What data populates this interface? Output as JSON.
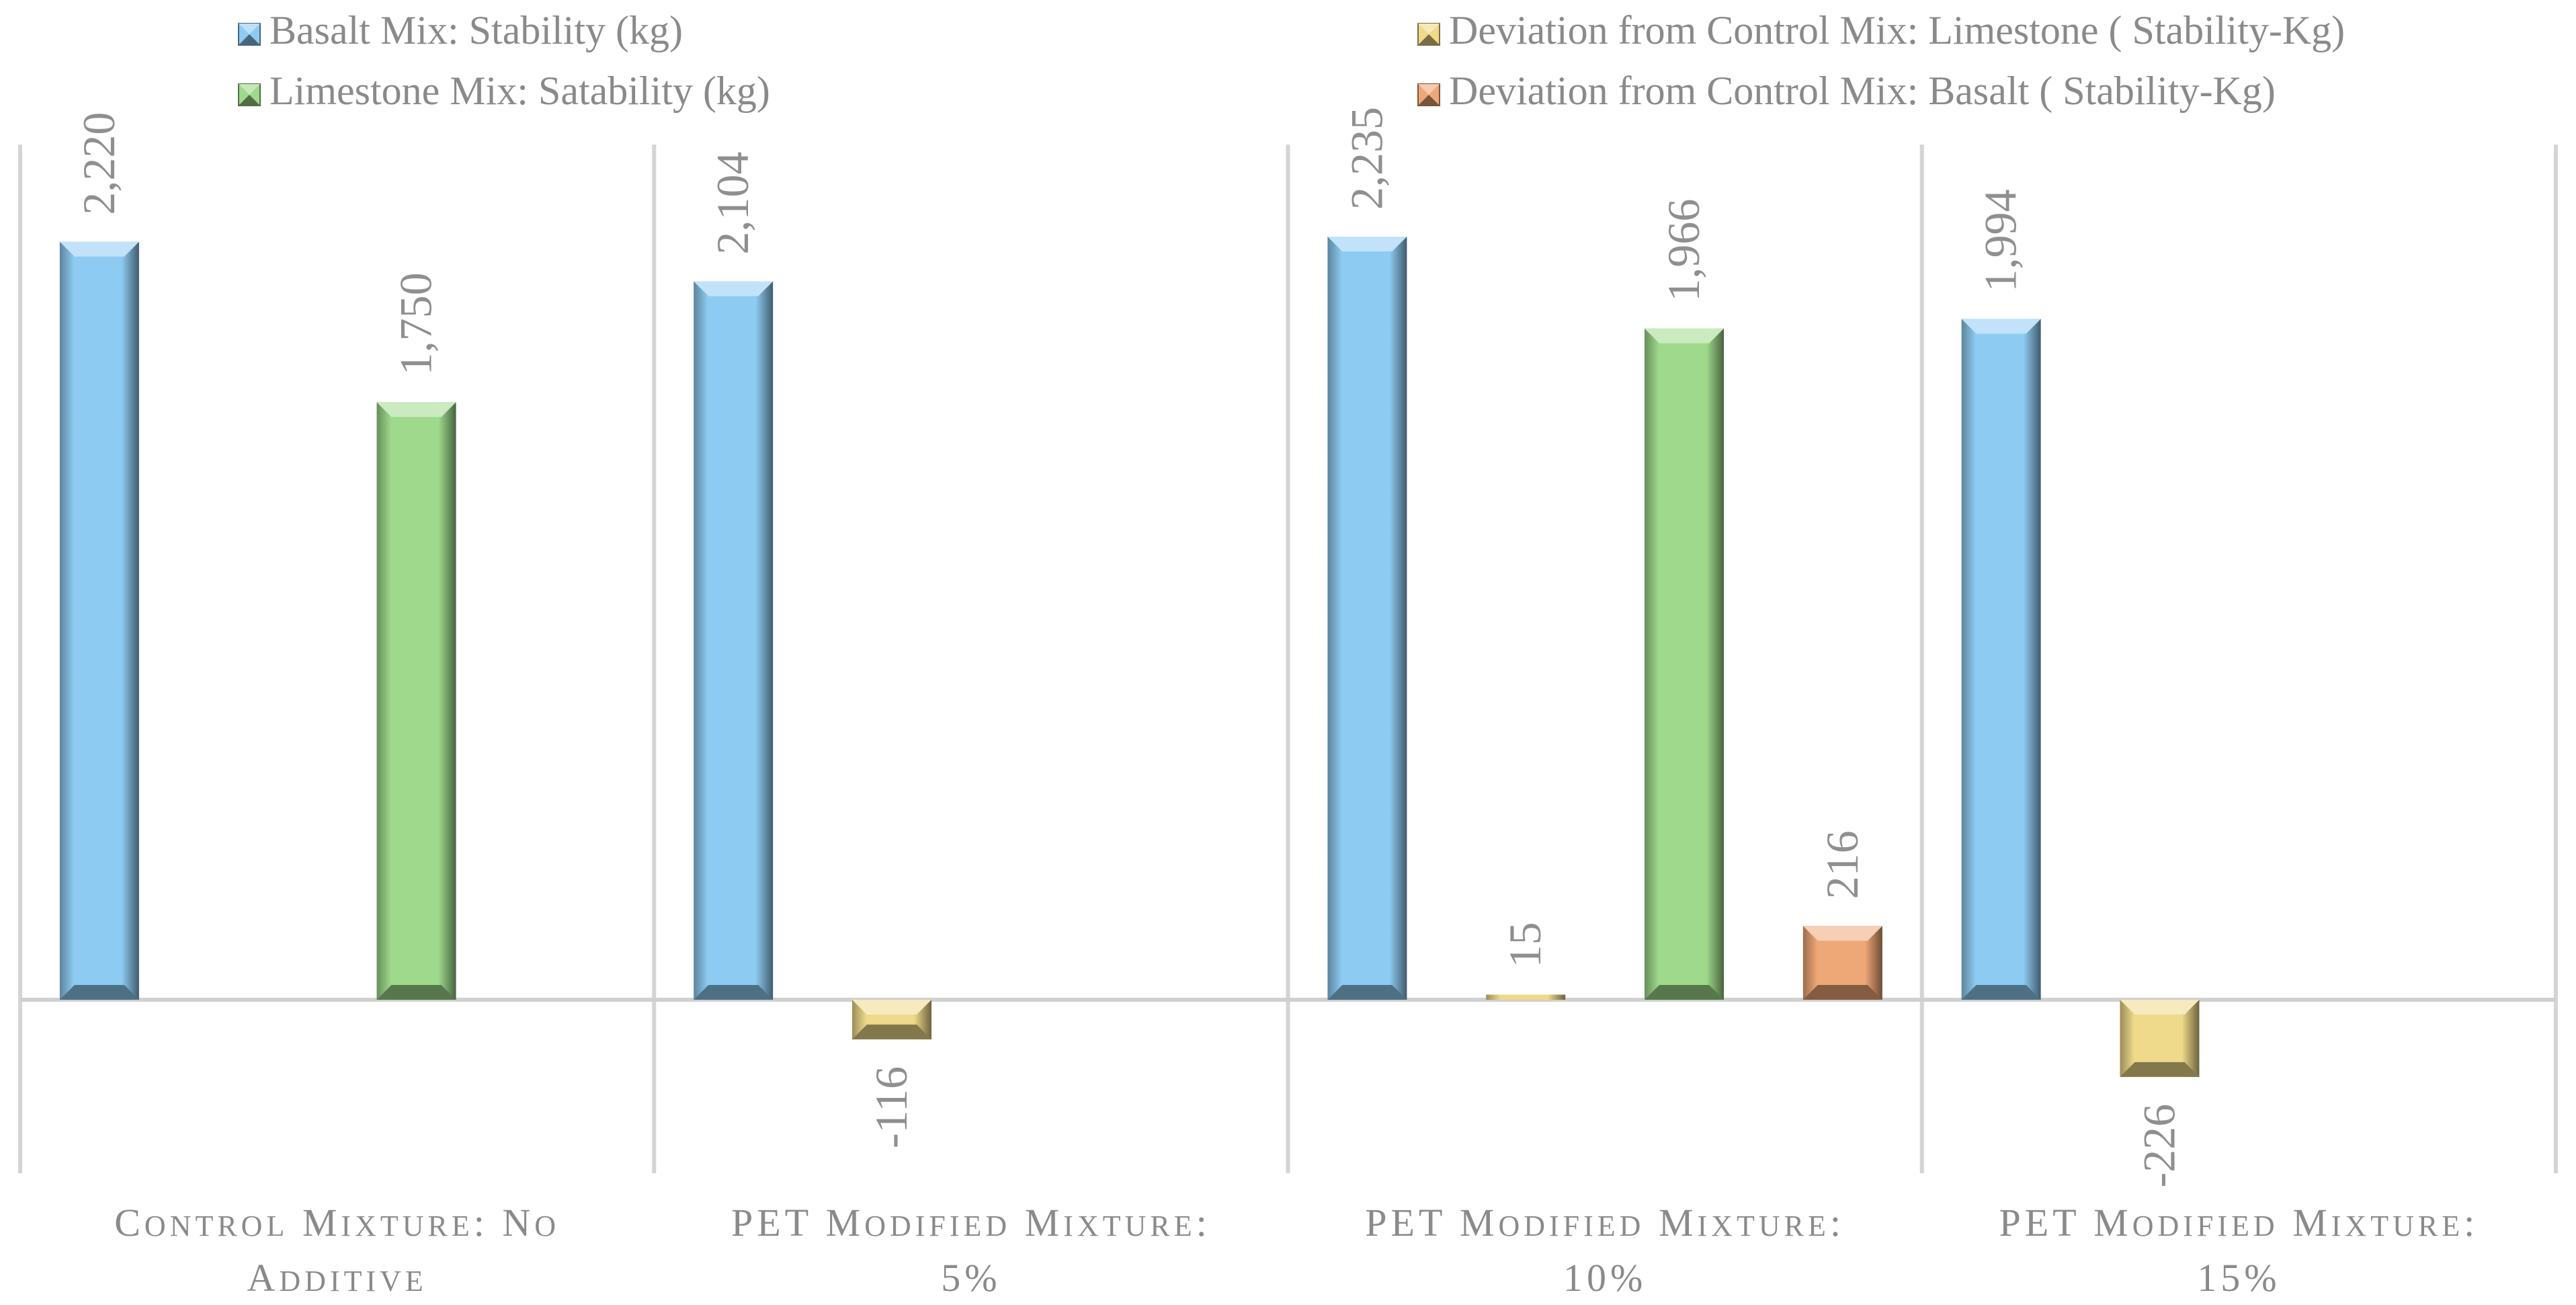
{
  "chart_data": {
    "type": "bar",
    "categories": [
      [
        "Control Mixture: No",
        "Additive"
      ],
      [
        "PET   Modified Mixture:",
        "5%"
      ],
      [
        "PET   Modified Mixture:",
        "10%"
      ],
      [
        "PET   Modified Mixture:",
        "15%"
      ]
    ],
    "series": [
      {
        "name": "Basalt Mix: Stability (kg)",
        "values": [
          2220,
          2104,
          2235,
          1994
        ],
        "labels": [
          "2,220",
          "2,104",
          "2,235",
          "1,994"
        ],
        "color": "#8ecbf2"
      },
      {
        "name": "Deviation  from Control Mix: Limestone ( Stability-Kg)",
        "values": [
          null,
          -116,
          15,
          -226
        ],
        "labels": [
          "",
          "-116",
          "15",
          "-226"
        ],
        "color": "#efd98a"
      },
      {
        "name": "Limestone Mix: Satability (kg)",
        "values": [
          1750,
          null,
          1966,
          null
        ],
        "labels": [
          "1,750",
          "",
          "1,966",
          ""
        ],
        "color": "#9fd98c"
      },
      {
        "name": "Deviation from Control Mix: Basalt ( Stability-Kg)",
        "values": [
          null,
          null,
          216,
          null
        ],
        "labels": [
          "",
          "",
          "216",
          ""
        ],
        "color": "#eeA777"
      }
    ],
    "ylim": [
      -500,
      2500
    ],
    "grid": false,
    "legend_position": "top"
  }
}
